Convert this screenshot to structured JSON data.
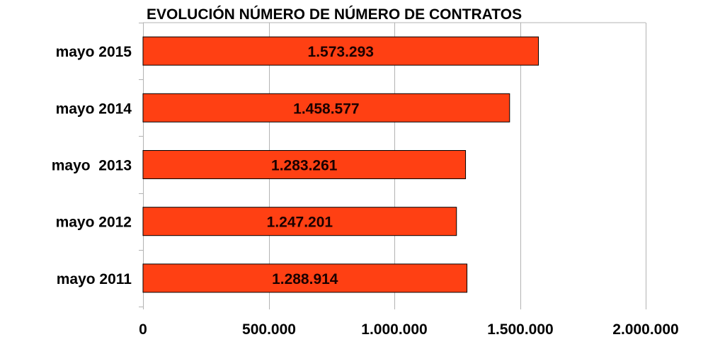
{
  "chart_data": {
    "type": "bar",
    "orientation": "horizontal",
    "title": "EVOLUCIÓN NÚMERO DE NÚMERO DE CONTRATOS",
    "categories": [
      "mayo 2015",
      "mayo 2014",
      "mayo  2013",
      "mayo 2012",
      "mayo 2011"
    ],
    "values": [
      1573293,
      1458577,
      1283261,
      1247201,
      1288914
    ],
    "value_labels": [
      "1.573.293",
      "1.458.577",
      "1.283.261",
      "1.247.201",
      "1.288.914"
    ],
    "xlim": [
      0,
      2000000
    ],
    "x_ticks": [
      0,
      500000,
      1000000,
      1500000,
      2000000
    ],
    "x_tick_labels": [
      "0",
      "500.000",
      "1.000.000",
      "1.500.000",
      "2.000.000"
    ],
    "xlabel": "",
    "ylabel": "",
    "grid": "vertical",
    "legend": "none",
    "colors": {
      "bar_fill": "#FF4013",
      "bar_stroke": "#000000",
      "gridline": "#b3b3b3",
      "axis": "#b3b3b3"
    }
  }
}
